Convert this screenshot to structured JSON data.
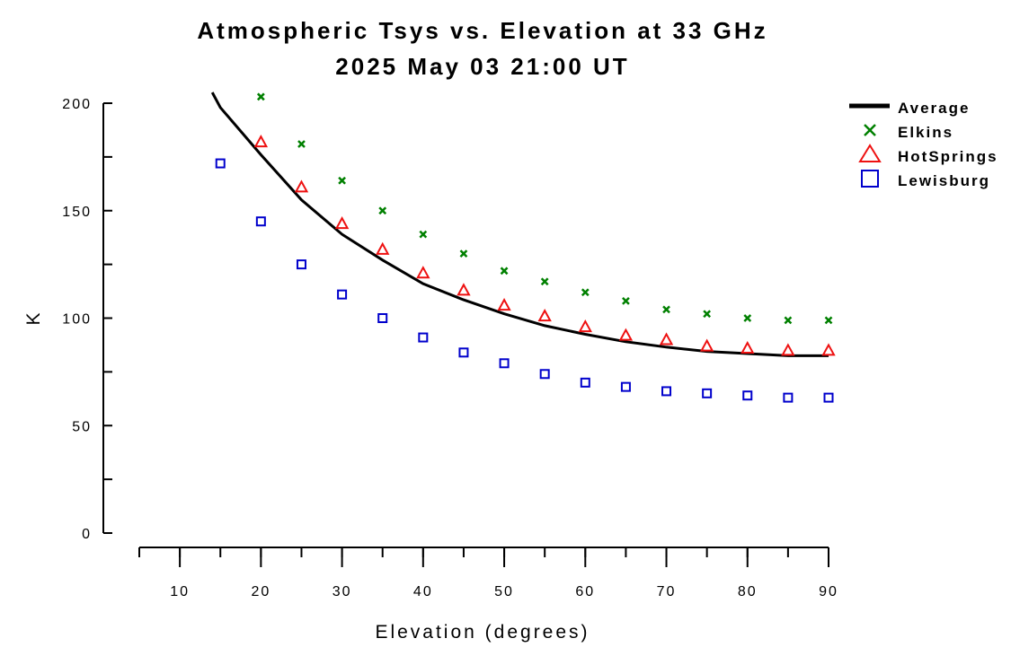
{
  "chart_data": {
    "type": "scatter",
    "title": "Atmospheric Tsys vs. Elevation at 33 GHz",
    "subtitle": "2025 May 03 21:00 UT",
    "xlabel": "Elevation (degrees)",
    "ylabel": "K",
    "xlim": [
      5,
      90
    ],
    "ylim": [
      0,
      200
    ],
    "x_ticks": [
      10,
      20,
      30,
      40,
      50,
      60,
      70,
      80,
      90
    ],
    "y_ticks": [
      0,
      50,
      100,
      150,
      200
    ],
    "grid": false,
    "legend_position": "top-right",
    "series": [
      {
        "name": "Average",
        "style": "line",
        "color": "#000000",
        "x": [
          14,
          15,
          20,
          25,
          30,
          35,
          40,
          45,
          50,
          55,
          60,
          65,
          70,
          75,
          80,
          85,
          90
        ],
        "y": [
          205,
          198,
          176,
          155,
          139,
          127,
          116,
          108.5,
          102,
          96.5,
          92.5,
          89,
          86.5,
          84.5,
          83.5,
          82.5,
          82.5
        ]
      },
      {
        "name": "Elkins",
        "style": "x",
        "color": "#008000",
        "x": [
          20,
          25,
          30,
          35,
          40,
          45,
          50,
          55,
          60,
          65,
          70,
          75,
          80,
          85,
          90
        ],
        "y": [
          203,
          181,
          164,
          150,
          139,
          130,
          122,
          117,
          112,
          108,
          104,
          102,
          100,
          99,
          99
        ]
      },
      {
        "name": "HotSprings",
        "style": "triangle",
        "color": "#ee1111",
        "x": [
          20,
          25,
          30,
          35,
          40,
          45,
          50,
          55,
          60,
          65,
          70,
          75,
          80,
          85,
          90
        ],
        "y": [
          182,
          161,
          144,
          132,
          121,
          113,
          106,
          101,
          96,
          92,
          90,
          87,
          86,
          85,
          85
        ]
      },
      {
        "name": "Lewisburg",
        "style": "square",
        "color": "#0000cc",
        "x": [
          15,
          20,
          25,
          30,
          35,
          40,
          45,
          50,
          55,
          60,
          65,
          70,
          75,
          80,
          85,
          90
        ],
        "y": [
          172,
          145,
          125,
          111,
          100,
          91,
          84,
          79,
          74,
          70,
          68,
          66,
          65,
          64,
          63,
          63
        ]
      }
    ]
  }
}
